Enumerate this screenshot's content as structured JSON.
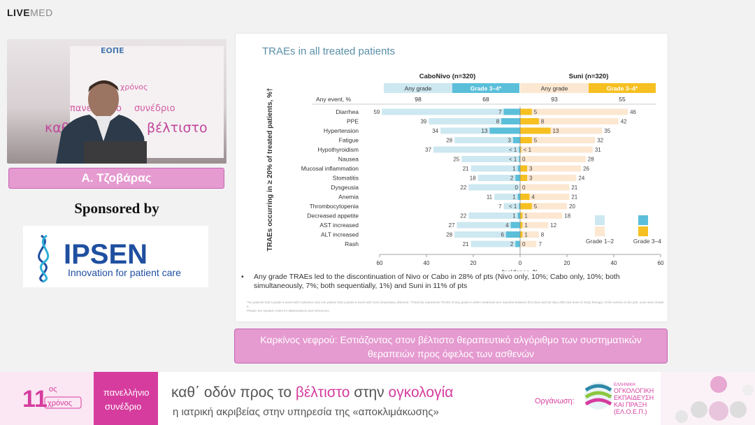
{
  "brand": {
    "logo_bold": "LIVE",
    "logo_thin": "MED"
  },
  "speaker": {
    "name": "Α. Τζοβάρας"
  },
  "sponsor": {
    "label": "Sponsored by",
    "company": "IPSEN",
    "tagline": "Innovation for patient care"
  },
  "video_banner": {
    "line1": "πανελλήνιο",
    "line2": "συνέδριο",
    "line3": "καθ΄ οδόν",
    "line4": "βέλτιστο",
    "partial": "ΕΟΠΕ",
    "badge": "χρόνος"
  },
  "slide": {
    "title": "TRAEs in all treated patients",
    "bullet": "Any grade TRAEs led to the discontinuation of Nivo or Cabo in 28% of pts (Nivo only, 10%; Cabo only, 10%; both simultaneously, 7%; both sequentially, 1%) and Suni in 11% of pts",
    "footnote1": "*No patients had a grade 5 event with CaboNivo and one patient had a grade 5 event with Suni (respiratory distress). †Total bar represents TRAEs of any grade in either treatment arm reported between first dose and 30 days after last dose of study therapy; of the events on the plot, none were Grade 5.",
    "footnote2": "Please see speaker notes for abbreviations and references."
  },
  "caption": {
    "line1": "Καρκίνος νεφρού: Εστιάζοντας στον βέλτιστο θεραπευτικό αλγόριθμο των συστηματικών",
    "line2": "θεραπειών προς όφελος των ασθενών"
  },
  "footer": {
    "edition_number": "11",
    "edition_suffix": "ος",
    "edition_word": "χρόνος",
    "congress_line1": "πανελλήνιο",
    "congress_line2": "συνέδριο",
    "motto_part1": "καθ΄ οδόν προς το ",
    "motto_part2": "βέλτιστο",
    "motto_part3": " στην ",
    "motto_part4": "ογκολογία",
    "subtitle": "η ιατρική ακριβείας στην υπηρεσία της «αποκλιμάκωσης»",
    "organizer_label": "Οργάνωση:",
    "org_line1": "ΕΛΛΗΝΙΚΗ",
    "org_line2": "ΟΓΚΟΛΟΓΙΚΗ",
    "org_line3": "ΕΚΠΑΙΔΕΥΣΗ",
    "org_line4": "ΚΑΙ ΠΡΑΞΗ",
    "org_line5": "(ΕΛ.Ο.Ε.Π.)"
  },
  "colors": {
    "pink": "#e59ad0",
    "cabo_any": "#cde8f1",
    "cabo_g34": "#5bbfda",
    "suni_any": "#fce7d1",
    "suni_g34": "#f6c022",
    "slide_title": "#5a8fa8"
  },
  "chart_data": {
    "type": "bar",
    "orientation": "horizontal-butterfly",
    "ylabel": "TRAEs occurring in ≥ 20% of treated patients, %†",
    "xlabel": "Incidence, %",
    "xlim": [
      -60,
      60
    ],
    "x_ticks": [
      "60",
      "40",
      "20",
      "0",
      "20",
      "40",
      "60"
    ],
    "arms": [
      {
        "name": "CaboNivo (n=320)",
        "any_header": "Any grade",
        "g34_header": "Grade 3–4*",
        "any_event_any": "98",
        "any_event_g34": "68"
      },
      {
        "name": "Suni (n=320)",
        "any_header": "Any grade",
        "g34_header": "Grade 3–4*",
        "any_event_any": "93",
        "any_event_g34": "55"
      }
    ],
    "any_event_label": "Any event, %",
    "categories": [
      "Diarrhea",
      "PPE",
      "Hypertension",
      "Fatigue",
      "Hypothyroidism",
      "Nausea",
      "Mucosal inflammation",
      "Stomatitis",
      "Dysgeusia",
      "Anemia",
      "Thrombocytopenia",
      "Decreased appetite",
      "AST increased",
      "ALT increased",
      "Rash"
    ],
    "series": [
      {
        "name": "CaboNivo any grade",
        "values": [
          59,
          39,
          34,
          28,
          37,
          25,
          21,
          18,
          22,
          11,
          7,
          22,
          27,
          28,
          21
        ]
      },
      {
        "name": "CaboNivo grade 3–4",
        "values": [
          7,
          8,
          13,
          3,
          0.5,
          0.5,
          1,
          2,
          0,
          1,
          0.5,
          1,
          4,
          6,
          2
        ],
        "labels": [
          "7",
          "8",
          "13",
          "3",
          "< 1",
          "< 1",
          "1",
          "2",
          "0",
          "1",
          "< 1",
          "1",
          "4",
          "6",
          "2"
        ]
      },
      {
        "name": "Suni any grade",
        "values": [
          46,
          42,
          35,
          32,
          31,
          28,
          26,
          24,
          21,
          21,
          20,
          18,
          12,
          8,
          7
        ]
      },
      {
        "name": "Suni grade 3–4",
        "values": [
          5,
          8,
          13,
          5,
          0.5,
          0,
          3,
          3,
          0,
          4,
          5,
          1,
          1,
          1,
          0
        ],
        "labels": [
          "5",
          "8",
          "13",
          "5",
          "< 1",
          "0",
          "3",
          "3",
          "0",
          "4",
          "5",
          "1",
          "1",
          "1",
          "0"
        ]
      }
    ],
    "legend": [
      "Grade 1–2",
      "Grade 3–4"
    ],
    "legend_position": "bottom-right",
    "grid": false
  }
}
